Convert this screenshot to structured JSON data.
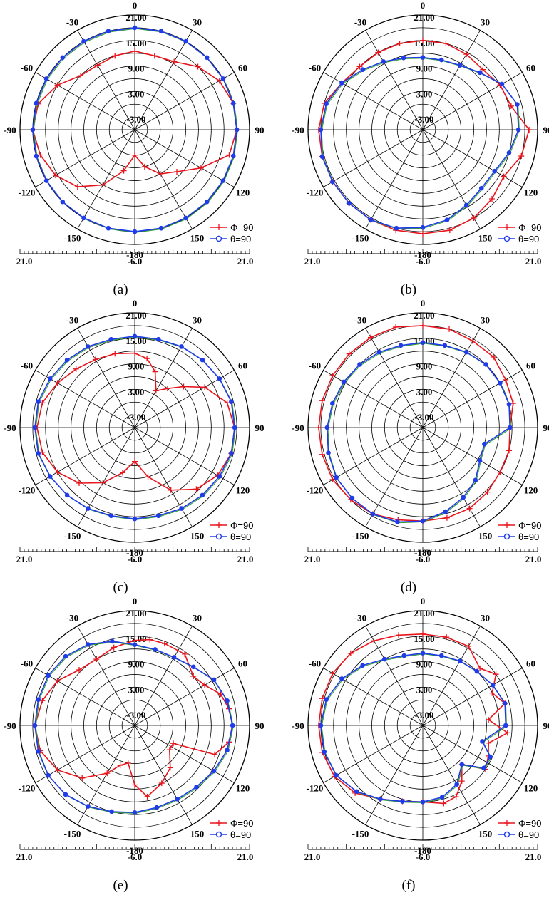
{
  "chart_data": [
    {
      "type": "polar",
      "panel": "a",
      "caption": "(a)",
      "rlim": [
        -6.0,
        21.0
      ],
      "ring_labels": [
        "21.00",
        "15.00",
        "9.00",
        "3.00",
        "-3.00"
      ],
      "angle_labels": [
        "0",
        "30",
        "60",
        "90",
        "120",
        "150",
        "-180",
        "-150",
        "-120",
        "-90",
        "-60",
        "-30"
      ],
      "scale_labels": [
        "21.0",
        "-6.0",
        "21.0"
      ],
      "grid": true,
      "legend_position": "bottom-right",
      "series": [
        {
          "name": "Φ=90",
          "color": "#e8141c",
          "marker": "plus",
          "angles": [
            0,
            15,
            30,
            45,
            60,
            75,
            90,
            105,
            120,
            135,
            150,
            165,
            180,
            195,
            210,
            225,
            240,
            255,
            270,
            285,
            300,
            315,
            330,
            345
          ],
          "values": [
            12.5,
            12,
            12.5,
            15,
            17,
            18,
            18,
            17,
            12,
            8,
            6,
            3,
            0,
            4,
            9,
            13,
            15.5,
            17,
            18,
            17.5,
            15,
            12,
            11.5,
            12
          ]
        },
        {
          "name": "θ=90",
          "color": "#1f3ce8",
          "marker": "circle",
          "angles": [
            0,
            15,
            30,
            45,
            60,
            75,
            90,
            105,
            120,
            135,
            150,
            165,
            180,
            195,
            210,
            225,
            240,
            255,
            270,
            285,
            300,
            315,
            330,
            345
          ],
          "values": [
            18,
            18,
            18,
            18,
            18,
            18,
            18,
            18,
            18,
            18,
            18,
            18,
            18,
            18,
            18,
            18,
            18,
            18,
            18,
            18,
            18,
            18,
            18,
            18
          ]
        }
      ]
    },
    {
      "type": "polar",
      "panel": "b",
      "caption": "(b)",
      "rlim": [
        -6.0,
        21.0
      ],
      "ring_labels": [
        "21.00",
        "15.00",
        "9.00",
        "3.00",
        "-3.00"
      ],
      "angle_labels": [
        "0",
        "30",
        "60",
        "90",
        "120",
        "150",
        "-180",
        "-150",
        "-120",
        "-90",
        "-60",
        "-30"
      ],
      "scale_labels": [
        "21.0",
        "-6.0",
        "21.0"
      ],
      "grid": true,
      "legend_position": "bottom-right",
      "series": [
        {
          "name": "Φ=90",
          "color": "#e8141c",
          "marker": "plus",
          "angles": [
            0,
            15,
            30,
            45,
            60,
            75,
            90,
            105,
            120,
            135,
            150,
            165,
            180,
            195,
            210,
            225,
            240,
            255,
            270,
            285,
            300,
            315,
            330,
            345
          ],
          "values": [
            15,
            15,
            14.5,
            14,
            15,
            15.5,
            19,
            18,
            16,
            17,
            18,
            18.5,
            18.5,
            18.5,
            18.5,
            18.5,
            18.5,
            18.5,
            18.5,
            18,
            16,
            15,
            15,
            15
          ]
        },
        {
          "name": "θ=90",
          "color": "#1f3ce8",
          "marker": "circle",
          "angles": [
            0,
            15,
            30,
            45,
            60,
            75,
            90,
            105,
            120,
            135,
            150,
            165,
            180,
            195,
            210,
            225,
            240,
            255,
            270,
            285,
            300,
            315,
            330,
            345
          ],
          "values": [
            11,
            11,
            11.5,
            13,
            15.5,
            17,
            16.5,
            15,
            13.5,
            13.5,
            14.5,
            16,
            17,
            18,
            18.5,
            18.5,
            18.5,
            18.5,
            18,
            17.5,
            16,
            14,
            12.5,
            11.5
          ]
        }
      ]
    },
    {
      "type": "polar",
      "panel": "c",
      "caption": "(c)",
      "rlim": [
        -6.0,
        21.0
      ],
      "ring_labels": [
        "21.00",
        "15.00",
        "9.00",
        "3.00",
        "-3.00"
      ],
      "angle_labels": [
        "0",
        "30",
        "60",
        "90",
        "120",
        "150",
        "-180",
        "-150",
        "-120",
        "-90",
        "-60",
        "-30"
      ],
      "scale_labels": [
        "21.0",
        "-6.0",
        "21.0"
      ],
      "grid": true,
      "legend_position": "bottom-right",
      "series": [
        {
          "name": "Φ=90",
          "color": "#e8141c",
          "marker": "plus",
          "angles": [
            0,
            10,
            20,
            30,
            40,
            50,
            60,
            75,
            90,
            105,
            120,
            135,
            150,
            165,
            180,
            195,
            210,
            225,
            240,
            255,
            270,
            285,
            300,
            315,
            330,
            345
          ],
          "values": [
            11.5,
            10.5,
            8,
            4,
            6,
            9,
            13,
            16.5,
            17.5,
            17.5,
            16.5,
            14.5,
            11,
            6,
            2,
            5,
            9,
            12.5,
            15,
            16.5,
            17,
            16.5,
            15,
            13.5,
            12.5,
            12
          ]
        },
        {
          "name": "θ=90",
          "color": "#1f3ce8",
          "marker": "circle",
          "angles": [
            0,
            15,
            30,
            45,
            60,
            75,
            90,
            105,
            120,
            135,
            150,
            165,
            180,
            195,
            210,
            225,
            240,
            255,
            270,
            285,
            300,
            315,
            330,
            345
          ],
          "values": [
            15.5,
            15.5,
            16,
            16.5,
            17,
            17.5,
            17.5,
            17.5,
            17,
            16.5,
            16,
            15.5,
            15.5,
            15.5,
            16,
            16.5,
            17,
            17.5,
            17.5,
            17.5,
            17,
            16.5,
            16,
            15.5
          ]
        }
      ]
    },
    {
      "type": "polar",
      "panel": "d",
      "caption": "(d)",
      "rlim": [
        -6.0,
        21.0
      ],
      "ring_labels": [
        "21.00",
        "15.00",
        "9.00",
        "3.00",
        "-3.00"
      ],
      "angle_labels": [
        "0",
        "30",
        "60",
        "90",
        "120",
        "150",
        "-180",
        "-150",
        "-120",
        "-90",
        "-60",
        "-30"
      ],
      "scale_labels": [
        "21.0",
        "-6.0",
        "21.0"
      ],
      "grid": true,
      "legend_position": "bottom-right",
      "series": [
        {
          "name": "Φ=90",
          "color": "#e8141c",
          "marker": "plus",
          "angles": [
            0,
            15,
            30,
            45,
            60,
            75,
            90,
            105,
            120,
            135,
            150,
            165,
            180,
            195,
            210,
            225,
            240,
            255,
            270,
            285,
            300,
            315,
            330,
            345
          ],
          "values": [
            18,
            18,
            17.5,
            17.5,
            16.5,
            16,
            14.5,
            15,
            15,
            15.5,
            16,
            16,
            16,
            16.5,
            17.5,
            18,
            18.5,
            18.5,
            18.5,
            18.5,
            18.5,
            18.5,
            18.5,
            18.5
          ]
        },
        {
          "name": "θ=90",
          "color": "#1f3ce8",
          "marker": "circle",
          "angles": [
            0,
            15,
            30,
            45,
            60,
            75,
            90,
            105,
            120,
            135,
            150,
            165,
            180,
            195,
            210,
            225,
            240,
            255,
            270,
            285,
            300,
            315,
            330,
            345
          ],
          "values": [
            14,
            14,
            14.5,
            15,
            15,
            15,
            14.5,
            9,
            9.5,
            11.5,
            13,
            14.5,
            16,
            17,
            17.5,
            17.5,
            17.5,
            17,
            16.5,
            16,
            15.5,
            15,
            14.5,
            14
          ]
        }
      ]
    },
    {
      "type": "polar",
      "panel": "e",
      "caption": "(e)",
      "rlim": [
        -6.0,
        21.0
      ],
      "ring_labels": [
        "21.00",
        "15.00",
        "9.00",
        "3.00",
        "-3.00"
      ],
      "angle_labels": [
        "0",
        "30",
        "60",
        "90",
        "120",
        "150",
        "-180",
        "-150",
        "-120",
        "-90",
        "-60",
        "-30"
      ],
      "scale_labels": [
        "21.0",
        "-6.0",
        "21.0"
      ],
      "grid": true,
      "legend_position": "bottom-right",
      "series": [
        {
          "name": "Φ=90",
          "color": "#e8141c",
          "marker": "plus",
          "angles": [
            0,
            10,
            20,
            35,
            50,
            60,
            70,
            80,
            90,
            100,
            110,
            115,
            125,
            140,
            155,
            170,
            180,
            190,
            200,
            210,
            225,
            240,
            255,
            270,
            285,
            300,
            315,
            330,
            345
          ],
          "values": [
            14,
            14.5,
            14.5,
            14.5,
            12,
            13,
            15.5,
            16.5,
            17,
            16.5,
            14,
            4,
            4,
            7,
            9,
            11,
            8,
            3,
            4,
            7,
            11.5,
            15,
            17,
            17.5,
            16.5,
            15,
            12.5,
            12,
            13
          ]
        },
        {
          "name": "θ=90",
          "color": "#1f3ce8",
          "marker": "circle",
          "angles": [
            0,
            15,
            30,
            45,
            60,
            75,
            90,
            105,
            120,
            135,
            150,
            165,
            180,
            195,
            210,
            225,
            240,
            255,
            270,
            285,
            300,
            315,
            330,
            345
          ],
          "values": [
            13,
            12.5,
            12.5,
            13.5,
            15.5,
            16.5,
            17,
            16.5,
            15.5,
            14.5,
            14,
            14,
            14.5,
            15,
            16,
            17,
            17.5,
            17.5,
            17.5,
            17.5,
            17.5,
            17,
            16,
            14.5
          ]
        }
      ]
    },
    {
      "type": "polar",
      "panel": "f",
      "caption": "(f)",
      "rlim": [
        -6.0,
        21.0
      ],
      "ring_labels": [
        "21.00",
        "15.00",
        "9.00",
        "3.00",
        "-3.00"
      ],
      "angle_labels": [
        "0",
        "30",
        "60",
        "90",
        "120",
        "150",
        "-180",
        "-150",
        "-120",
        "-90",
        "-60",
        "-30"
      ],
      "scale_labels": [
        "21.0",
        "-6.0",
        "21.0"
      ],
      "grid": true,
      "legend_position": "bottom-right",
      "series": [
        {
          "name": "Φ=90",
          "color": "#e8141c",
          "marker": "plus",
          "angles": [
            0,
            15,
            30,
            45,
            55,
            65,
            75,
            85,
            95,
            105,
            115,
            125,
            135,
            145,
            155,
            165,
            180,
            195,
            210,
            225,
            240,
            255,
            270,
            285,
            300,
            315,
            330,
            345
          ],
          "values": [
            15.5,
            15.5,
            15.5,
            13,
            15,
            12,
            14,
            9.5,
            14,
            10,
            11,
            12,
            7,
            10,
            12.5,
            13,
            12,
            12.5,
            14,
            16.5,
            18,
            18.5,
            18.5,
            18.5,
            18.5,
            18,
            17,
            16
          ]
        },
        {
          "name": "θ=90",
          "color": "#1f3ce8",
          "marker": "circle",
          "angles": [
            0,
            15,
            30,
            45,
            60,
            75,
            90,
            105,
            115,
            125,
            135,
            150,
            165,
            180,
            195,
            210,
            225,
            240,
            255,
            270,
            285,
            300,
            315,
            330,
            345
          ],
          "values": [
            11,
            11,
            11.5,
            12,
            13,
            14,
            13.5,
            8.5,
            11.5,
            11.5,
            7,
            10,
            11.5,
            12,
            12.5,
            14,
            16,
            17.5,
            18,
            18,
            17.5,
            16,
            14,
            12,
            11
          ]
        }
      ]
    }
  ]
}
